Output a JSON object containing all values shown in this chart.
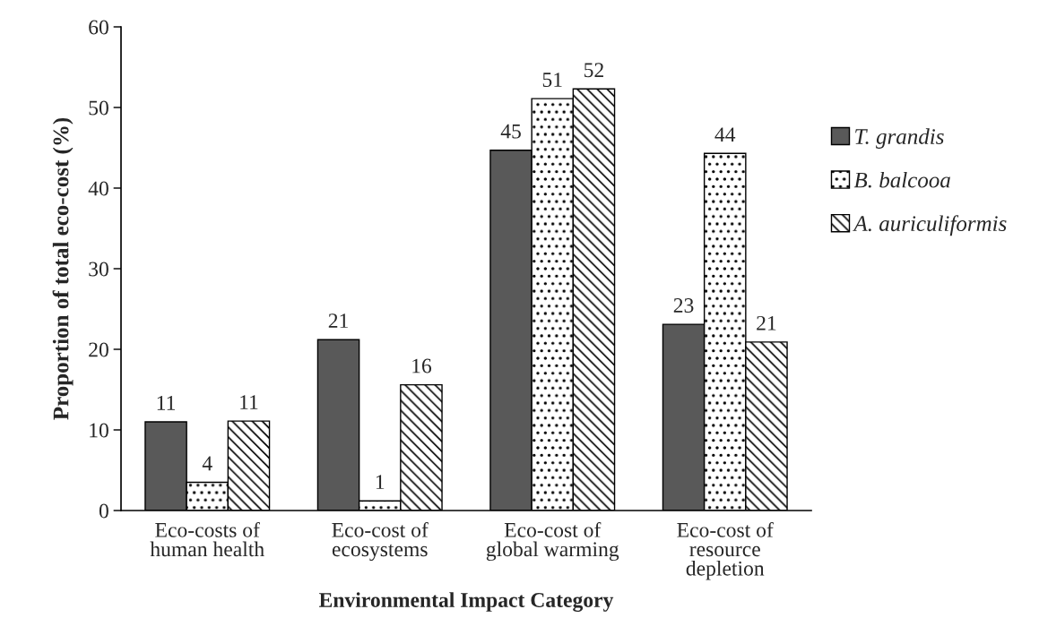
{
  "chart_data": {
    "type": "bar",
    "xlabel": "Environmental Impact Category",
    "ylabel": "Proportion of total eco-cost (%)",
    "categories": [
      "Eco-costs of\nhuman health",
      "Eco-cost of\necosystems",
      "Eco-cost of\nglobal warming",
      "Eco-cost of\nresource\ndepletion"
    ],
    "series": [
      {
        "name": "T. grandis",
        "color": "#595959",
        "values": [
          11.0,
          21.2,
          44.7,
          23.1
        ],
        "value_labels": [
          "11",
          "21",
          "45",
          "23"
        ]
      },
      {
        "name": "B. balcooa",
        "color": "#ffffff",
        "values": [
          3.5,
          1.2,
          51.1,
          44.3
        ],
        "value_labels": [
          "4",
          "1",
          "51",
          "44"
        ]
      },
      {
        "name": "A. auriculiformis",
        "color": "#ffffff",
        "values": [
          11.1,
          15.6,
          52.3,
          20.9
        ],
        "value_labels": [
          "11",
          "16",
          "52",
          "21"
        ]
      }
    ],
    "ylim": [
      0,
      60
    ],
    "yticks": [
      0,
      10,
      20,
      30,
      40,
      50,
      60
    ],
    "grid": false,
    "legend": "right"
  }
}
